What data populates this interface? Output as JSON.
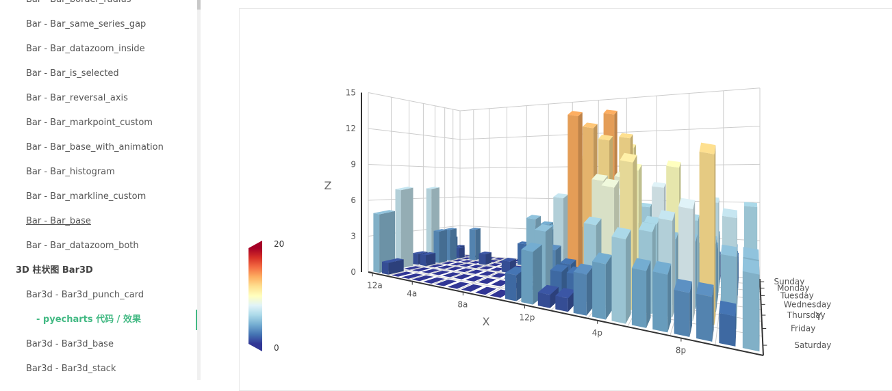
{
  "sidebar": {
    "bar_links": [
      "Bar - Bar_border_radius",
      "Bar - Bar_same_series_gap",
      "Bar - Bar_datazoom_inside",
      "Bar - Bar_is_selected",
      "Bar - Bar_reversal_axis",
      "Bar - Bar_markpoint_custom",
      "Bar - Bar_base_with_animation",
      "Bar - Bar_histogram",
      "Bar - Bar_markline_custom",
      "Bar - Bar_base",
      "Bar - Bar_datazoom_both"
    ],
    "section_title": "3D 柱状图 Bar3D",
    "bar3d_link": "Bar3d - Bar3d_punch_card",
    "active_link": "- pyecharts 代码 / 效果",
    "more_links": [
      "Bar3d - Bar3d_base",
      "Bar3d - Bar3d_stack"
    ]
  },
  "chart_data": {
    "type": "bar3d",
    "x_label": "X",
    "y_label": "Y",
    "z_label": "Z",
    "x_categories": [
      "12a",
      null,
      null,
      null,
      "4a",
      null,
      null,
      null,
      "8a",
      null,
      null,
      null,
      "12p",
      null,
      null,
      null,
      "4p",
      null,
      null,
      null,
      "8p",
      null,
      null,
      null
    ],
    "y_categories": [
      "Saturday",
      "Friday",
      "Thursday",
      "Wednesday",
      "Tuesday",
      "Monday",
      "Sunday"
    ],
    "values": [
      [
        5,
        1,
        0,
        0,
        0,
        0,
        0,
        0,
        0,
        0,
        0,
        2,
        4,
        1,
        1,
        3,
        4,
        6,
        4,
        4,
        3,
        3,
        2,
        5
      ],
      [
        7,
        0,
        0,
        0,
        0,
        0,
        0,
        0,
        0,
        0,
        0,
        0,
        5,
        2,
        2,
        6,
        9,
        11,
        6,
        7,
        8,
        12,
        5,
        5
      ],
      [
        1,
        1,
        0,
        0,
        0,
        0,
        0,
        0,
        0,
        0,
        0,
        0,
        3,
        2,
        1,
        9,
        8,
        10,
        6,
        5,
        5,
        5,
        7,
        4
      ],
      [
        7,
        3,
        0,
        0,
        0,
        0,
        0,
        0,
        1,
        0,
        5,
        4,
        7,
        14,
        13,
        12,
        9,
        5,
        5,
        10,
        6,
        4,
        4,
        1
      ],
      [
        1,
        3,
        0,
        0,
        0,
        1,
        0,
        0,
        0,
        2,
        4,
        4,
        2,
        4,
        4,
        14,
        12,
        1,
        8,
        5,
        3,
        7,
        3,
        0
      ],
      [
        2,
        1,
        0,
        3,
        0,
        0,
        0,
        0,
        2,
        0,
        4,
        1,
        5,
        10,
        5,
        7,
        11,
        6,
        0,
        5,
        3,
        4,
        2,
        0
      ],
      [
        1,
        0,
        0,
        0,
        0,
        0,
        0,
        0,
        0,
        0,
        1,
        0,
        2,
        1,
        3,
        4,
        0,
        0,
        0,
        0,
        1,
        2,
        2,
        6
      ]
    ],
    "zlim": [
      0,
      15
    ],
    "zticks": [
      0,
      3,
      6,
      9,
      12,
      15
    ],
    "grid": true,
    "visual_map": {
      "min": 0,
      "max": 20,
      "colors": [
        "#313695",
        "#4575b4",
        "#74add1",
        "#abd9e9",
        "#e0f3f8",
        "#ffffbf",
        "#fee090",
        "#fdae61",
        "#f46d43",
        "#d73027",
        "#a50026"
      ]
    }
  }
}
